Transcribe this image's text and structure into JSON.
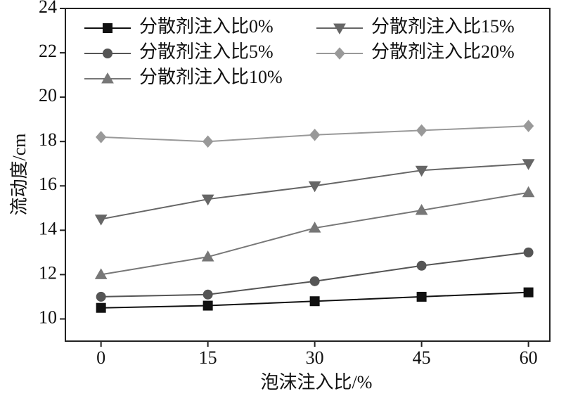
{
  "chart_data": {
    "type": "line",
    "x_label": "泡沫注入比/%",
    "y_label": "流动度/cm",
    "x": [
      0,
      15,
      30,
      45,
      60
    ],
    "xlim": [
      -5,
      63
    ],
    "xticks": [
      0,
      15,
      30,
      45,
      60
    ],
    "ylim": [
      9,
      24
    ],
    "yticks": [
      10,
      12,
      14,
      16,
      18,
      20,
      22,
      24
    ],
    "series": [
      {
        "name": "分散剂注入比0%",
        "color": "#111111",
        "marker": "square",
        "values": [
          10.5,
          10.6,
          10.8,
          11.0,
          11.2
        ]
      },
      {
        "name": "分散剂注入比5%",
        "color": "#555555",
        "marker": "circle",
        "values": [
          11.0,
          11.1,
          11.7,
          12.4,
          13.0
        ]
      },
      {
        "name": "分散剂注入比10%",
        "color": "#777777",
        "marker": "triangle-up",
        "values": [
          12.0,
          12.8,
          14.1,
          14.9,
          15.7
        ]
      },
      {
        "name": "分散剂注入比15%",
        "color": "#666666",
        "marker": "triangle-down",
        "values": [
          14.5,
          15.4,
          16.0,
          16.7,
          17.0
        ]
      },
      {
        "name": "分散剂注入比20%",
        "color": "#999999",
        "marker": "diamond",
        "values": [
          18.2,
          18.0,
          18.3,
          18.5,
          18.7
        ]
      }
    ]
  }
}
